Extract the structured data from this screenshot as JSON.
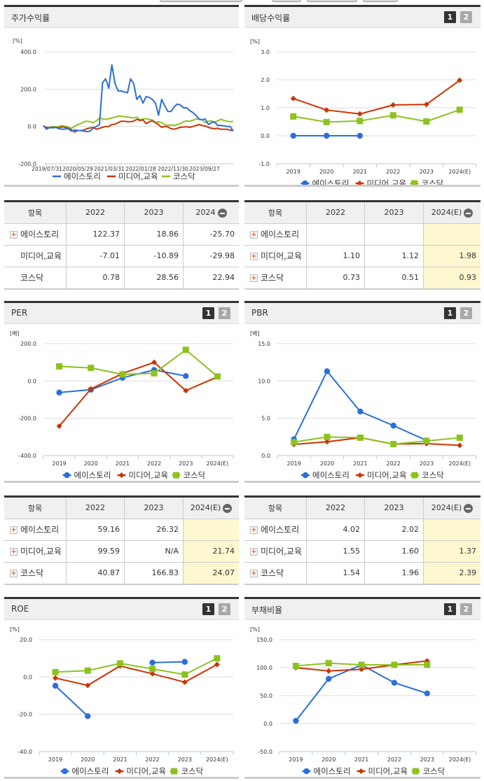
{
  "colors": {
    "company": "#2a6fdb",
    "industry": "#cc3300",
    "kosdaq": "#8cc21e",
    "estimate_bg": "#fdf8d0",
    "plus_icon": "#f26522"
  },
  "legend": {
    "company": "에이스토리",
    "industry": "미디어,교육",
    "kosdaq": "코스닥"
  },
  "tab_buttons": {
    "one": "1",
    "two": "2"
  },
  "panels": {
    "stock_return": {
      "title": "주가수익률",
      "unit": "[%]"
    },
    "dividend": {
      "title": "배당수익률",
      "unit": "[%]"
    },
    "per": {
      "title": "PER",
      "unit": "[배]"
    },
    "pbr": {
      "title": "PBR",
      "unit": "[배]"
    },
    "roe": {
      "title": "ROE",
      "unit": "[%]"
    },
    "debt": {
      "title": "부채비율",
      "unit": "[%]"
    }
  },
  "tables": {
    "stock_return": {
      "headers": [
        "항목",
        "2022",
        "2023",
        "2024"
      ],
      "rows": [
        {
          "name": "에이스토리",
          "plus": true,
          "values": [
            "122.37",
            "18.86",
            "-25.70"
          ]
        },
        {
          "name": "미디어,교육",
          "plus": false,
          "values": [
            "-7.01",
            "-10.89",
            "-29.98"
          ]
        },
        {
          "name": "코스닥",
          "plus": false,
          "values": [
            "0.78",
            "28.56",
            "22.94"
          ]
        }
      ]
    },
    "dividend": {
      "headers": [
        "항목",
        "2022",
        "2023",
        "2024(E)"
      ],
      "rows": [
        {
          "name": "에이스토리",
          "plus": true,
          "values": [
            "",
            "",
            ""
          ]
        },
        {
          "name": "미디어,교육",
          "plus": true,
          "values": [
            "1.10",
            "1.12",
            "1.98"
          ]
        },
        {
          "name": "코스닥",
          "plus": true,
          "values": [
            "0.73",
            "0.51",
            "0.93"
          ]
        }
      ]
    },
    "per": {
      "headers": [
        "항목",
        "2022",
        "2023",
        "2024(E)"
      ],
      "rows": [
        {
          "name": "에이스토리",
          "plus": true,
          "values": [
            "59.16",
            "26.32",
            ""
          ]
        },
        {
          "name": "미디어,교육",
          "plus": true,
          "values": [
            "99.59",
            "N/A",
            "21.74"
          ]
        },
        {
          "name": "코스닥",
          "plus": true,
          "values": [
            "40.87",
            "166.83",
            "24.07"
          ]
        }
      ]
    },
    "pbr": {
      "headers": [
        "항목",
        "2022",
        "2023",
        "2024(E)"
      ],
      "rows": [
        {
          "name": "에이스토리",
          "plus": true,
          "values": [
            "4.02",
            "2.02",
            ""
          ]
        },
        {
          "name": "미디어,교육",
          "plus": true,
          "values": [
            "1.55",
            "1.60",
            "1.37"
          ]
        },
        {
          "name": "코스닥",
          "plus": true,
          "values": [
            "1.54",
            "1.96",
            "2.39"
          ]
        }
      ]
    }
  },
  "chart_data": [
    {
      "id": "stock_return",
      "type": "line",
      "title": "주가수익률",
      "ylabel": "[%]",
      "ylim": [
        -200,
        400
      ],
      "yticks": [
        "400.0",
        "200.0",
        "0.0",
        "-200.0"
      ],
      "x_tick_labels": [
        "2019/07/31",
        "2020/05/29",
        "2021/03/31",
        "2022/01/28",
        "2022/11/30",
        "2023/09/27"
      ],
      "grid": true,
      "legend_position": "bottom",
      "series": [
        {
          "name": "에이스토리",
          "values": [
            5,
            -15,
            -5,
            -8,
            -5,
            -12,
            -15,
            -14,
            -12,
            -25,
            -18,
            -22,
            -22,
            -25,
            -28,
            -25,
            -10,
            0,
            10,
            235,
            255,
            205,
            330,
            230,
            190,
            190,
            185,
            180,
            255,
            230,
            145,
            165,
            125,
            160,
            155,
            145,
            125,
            60,
            145,
            110,
            80,
            80,
            105,
            120,
            115,
            100,
            100,
            85,
            75,
            60,
            40,
            35,
            40,
            10,
            20,
            25,
            5,
            5,
            3,
            0,
            0,
            -25
          ]
        },
        {
          "name": "미디어,교육",
          "values": [
            0,
            -5,
            -8,
            -5,
            -5,
            -8,
            -2,
            -5,
            -10,
            -18,
            -30,
            -22,
            -22,
            -20,
            -12,
            -8,
            -5,
            -15,
            -10,
            -5,
            0,
            0,
            10,
            12,
            20,
            28,
            28,
            25,
            26,
            28,
            38,
            32,
            35,
            15,
            25,
            30,
            20,
            10,
            -5,
            0,
            -3,
            -12,
            -15,
            -10,
            -5,
            -3,
            -2,
            -5,
            0,
            5,
            10,
            5,
            2,
            -5,
            -10,
            -12,
            -10,
            -15,
            -15,
            -15,
            -20,
            -22
          ]
        },
        {
          "name": "코스닥",
          "values": [
            0,
            -8,
            -5,
            0,
            -2,
            0,
            5,
            0,
            -3,
            -10,
            0,
            10,
            15,
            25,
            28,
            25,
            20,
            30,
            45,
            40,
            38,
            42,
            45,
            50,
            55,
            55,
            52,
            50,
            48,
            45,
            50,
            35,
            40,
            42,
            38,
            35,
            20,
            25,
            20,
            10,
            5,
            8,
            5,
            10,
            15,
            25,
            30,
            28,
            32,
            40,
            38,
            35,
            20,
            28,
            30,
            22,
            30,
            38,
            32,
            28,
            25,
            28
          ]
        }
      ]
    },
    {
      "id": "dividend",
      "type": "line",
      "title": "배당수익률",
      "ylabel": "[%]",
      "ylim": [
        -1,
        3
      ],
      "yticks": [
        "3.0",
        "2.0",
        "1.0",
        "0.0",
        "-1.0"
      ],
      "categories": [
        "2019",
        "2020",
        "2021",
        "2022",
        "2023",
        "2024(E)"
      ],
      "grid": true,
      "legend_position": "bottom",
      "series": [
        {
          "name": "에이스토리",
          "values": [
            0.0,
            0.0,
            0.0,
            null,
            null,
            null
          ]
        },
        {
          "name": "미디어,교육",
          "values": [
            1.33,
            0.92,
            0.78,
            1.1,
            1.12,
            1.98
          ]
        },
        {
          "name": "코스닥",
          "values": [
            0.69,
            0.49,
            0.53,
            0.73,
            0.51,
            0.93
          ]
        }
      ]
    },
    {
      "id": "per",
      "type": "line",
      "title": "PER",
      "ylabel": "[배]",
      "ylim": [
        -400,
        200
      ],
      "yticks": [
        "200.0",
        "0.0",
        "-200.0",
        "-400.0"
      ],
      "categories": [
        "2019",
        "2020",
        "2021",
        "2022",
        "2023",
        "2024(E)"
      ],
      "grid": true,
      "legend_position": "bottom",
      "series": [
        {
          "name": "에이스토리",
          "values": [
            -62,
            -47,
            17,
            59.16,
            26.32,
            null
          ]
        },
        {
          "name": "미디어,교육",
          "values": [
            -242,
            -43,
            40,
            99.59,
            -52,
            21.74
          ]
        },
        {
          "name": "코스닥",
          "values": [
            78,
            70,
            35,
            40.87,
            166.83,
            24.07
          ]
        }
      ]
    },
    {
      "id": "pbr",
      "type": "line",
      "title": "PBR",
      "ylabel": "[배]",
      "ylim": [
        0,
        15
      ],
      "yticks": [
        "15.0",
        "10.0",
        "5.0",
        "0.0"
      ],
      "categories": [
        "2019",
        "2020",
        "2021",
        "2022",
        "2023",
        "2024(E)"
      ],
      "grid": true,
      "legend_position": "bottom",
      "series": [
        {
          "name": "에이스토리",
          "values": [
            2.2,
            11.3,
            5.9,
            4.02,
            2.02,
            null
          ]
        },
        {
          "name": "미디어,교육",
          "values": [
            1.5,
            1.85,
            2.4,
            1.55,
            1.6,
            1.37
          ]
        },
        {
          "name": "코스닥",
          "values": [
            1.8,
            2.5,
            2.4,
            1.54,
            1.96,
            2.39
          ]
        }
      ]
    },
    {
      "id": "roe",
      "type": "line",
      "title": "ROE",
      "ylabel": "[%]",
      "ylim": [
        -40,
        20
      ],
      "yticks": [
        "20.0",
        "0.0",
        "-20.0",
        "-40.0"
      ],
      "categories": [
        "2019",
        "2020",
        "2021",
        "2022",
        "2023",
        "2024(E)"
      ],
      "grid": true,
      "legend_position": "bottom",
      "series": [
        {
          "name": "에이스토리",
          "values": [
            -4.7,
            -21.0,
            null,
            7.7,
            8.1,
            null
          ]
        },
        {
          "name": "미디어,교육",
          "values": [
            -0.6,
            -4.5,
            5.9,
            1.7,
            -2.8,
            6.7
          ]
        },
        {
          "name": "코스닥",
          "values": [
            2.6,
            3.4,
            7.3,
            4.3,
            1.3,
            10.0
          ]
        }
      ]
    },
    {
      "id": "debt",
      "type": "line",
      "title": "부채비율",
      "ylabel": "[%]",
      "ylim": [
        -50,
        150
      ],
      "yticks": [
        "150.0",
        "100.0",
        "50.0",
        "0.0",
        "-50.0"
      ],
      "categories": [
        "2019",
        "2020",
        "2021",
        "2022",
        "2023",
        "2024(E)"
      ],
      "grid": true,
      "legend_position": "bottom",
      "series": [
        {
          "name": "에이스토리",
          "values": [
            5,
            80,
            105,
            73,
            54,
            null
          ]
        },
        {
          "name": "미디어,교육",
          "values": [
            100,
            94,
            97,
            105,
            112,
            null
          ]
        },
        {
          "name": "코스닥",
          "values": [
            103,
            108,
            105,
            105,
            105,
            null
          ]
        }
      ]
    }
  ]
}
